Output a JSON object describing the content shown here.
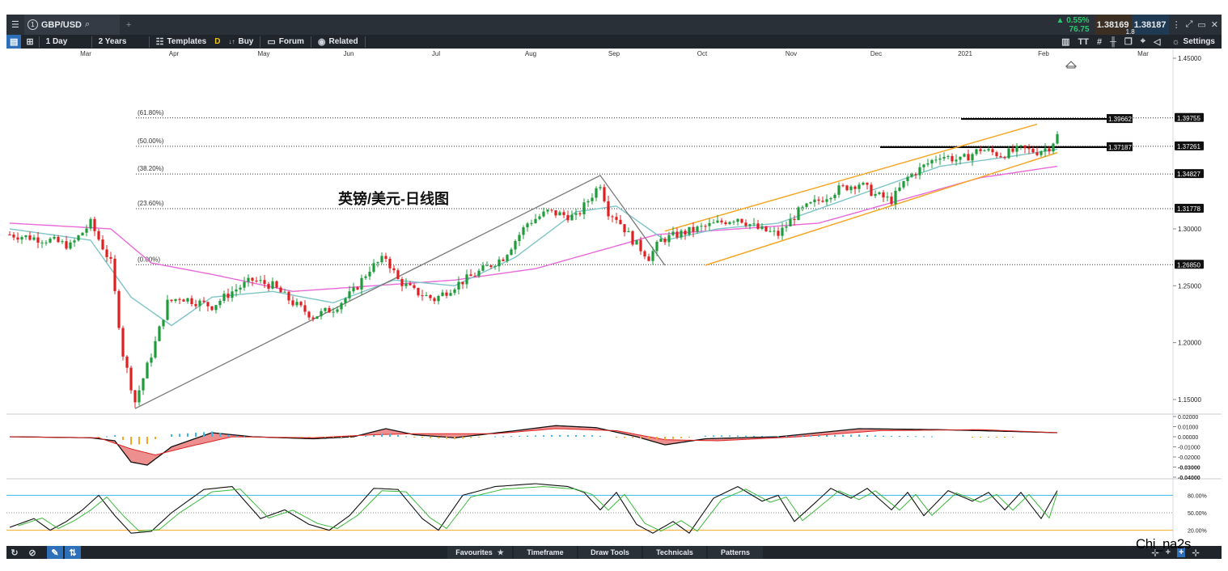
{
  "topbar": {
    "menu_icon": "hamburger-icon",
    "symbol_number": "1",
    "symbol": "GBP/USD",
    "search_icon": "search-icon",
    "add_icon": "plus-icon",
    "change_pct": "0.55%",
    "change_pts": "76.75",
    "bid": "1.38169",
    "spread": "1.8",
    "ask": "1.38187",
    "colors": {
      "up": "#29c76f",
      "bid_bg": "#3a2f22",
      "ask_bg": "#1f3a52"
    }
  },
  "toolbar": {
    "interval": "1 Day",
    "range": "2 Years",
    "templates": "Templates",
    "badge": "D",
    "buy": "Buy",
    "forum": "Forum",
    "related": "Related",
    "settings": "Settings",
    "text_icon": "TT"
  },
  "bottombar": {
    "tabs": [
      "Favourites",
      "Timeframe",
      "Draw Tools",
      "Technicals",
      "Patterns"
    ]
  },
  "watermark": "Chi_na2s",
  "chart_data": {
    "type": "candlestick",
    "title": "英镑/美元-日线图",
    "x_months": [
      "Mar",
      "Apr",
      "May",
      "Jun",
      "Jul",
      "Aug",
      "Sep",
      "Oct",
      "Nov",
      "Dec",
      "2021",
      "Feb",
      "Mar"
    ],
    "y_ticks": [
      "1.45000",
      "1.30000",
      "1.25000",
      "1.20000",
      "1.15000"
    ],
    "ylim": [
      1.14,
      1.45
    ],
    "price_tags": [
      "1.39755",
      "1.37261",
      "1.34827",
      "1.31778",
      "1.26850"
    ],
    "fib_levels": [
      {
        "label": "(61.80%)",
        "value": 1.39755
      },
      {
        "label": "(50.00%)",
        "value": 1.37261
      },
      {
        "label": "(38.20%)",
        "value": 1.34827
      },
      {
        "label": "(23.60%)",
        "value": 1.31778
      },
      {
        "label": "(0.00%)",
        "value": 1.2685
      }
    ],
    "resistance": [
      {
        "label": "1.39662",
        "value": 1.39662
      },
      {
        "label": "1.37187",
        "value": 1.37187
      }
    ],
    "close_anchors": [
      [
        0,
        1.295
      ],
      [
        10,
        1.29
      ],
      [
        15,
        1.285
      ],
      [
        20,
        1.305
      ],
      [
        25,
        1.27
      ],
      [
        28,
        1.19
      ],
      [
        31,
        1.148
      ],
      [
        36,
        1.2
      ],
      [
        39,
        1.235
      ],
      [
        42,
        1.24
      ],
      [
        50,
        1.232
      ],
      [
        55,
        1.245
      ],
      [
        60,
        1.255
      ],
      [
        65,
        1.25
      ],
      [
        70,
        1.235
      ],
      [
        75,
        1.223
      ],
      [
        80,
        1.23
      ],
      [
        85,
        1.245
      ],
      [
        89,
        1.265
      ],
      [
        93,
        1.275
      ],
      [
        96,
        1.255
      ],
      [
        100,
        1.245
      ],
      [
        105,
        1.238
      ],
      [
        110,
        1.25
      ],
      [
        115,
        1.26
      ],
      [
        122,
        1.275
      ],
      [
        128,
        1.305
      ],
      [
        133,
        1.315
      ],
      [
        140,
        1.31
      ],
      [
        143,
        1.325
      ],
      [
        146,
        1.34
      ],
      [
        148,
        1.315
      ],
      [
        150,
        1.31
      ],
      [
        154,
        1.29
      ],
      [
        158,
        1.275
      ],
      [
        161,
        1.29
      ],
      [
        165,
        1.295
      ],
      [
        170,
        1.3
      ],
      [
        175,
        1.305
      ],
      [
        180,
        1.31
      ],
      [
        185,
        1.3
      ],
      [
        190,
        1.295
      ],
      [
        195,
        1.315
      ],
      [
        200,
        1.325
      ],
      [
        205,
        1.335
      ],
      [
        210,
        1.34
      ],
      [
        214,
        1.33
      ],
      [
        218,
        1.325
      ],
      [
        222,
        1.345
      ],
      [
        226,
        1.355
      ],
      [
        230,
        1.365
      ],
      [
        235,
        1.36
      ],
      [
        240,
        1.37
      ],
      [
        245,
        1.365
      ],
      [
        250,
        1.37
      ],
      [
        254,
        1.368
      ],
      [
        257,
        1.372
      ],
      [
        259,
        1.382
      ]
    ],
    "ma_fast_anchors": [
      [
        0,
        1.3
      ],
      [
        20,
        1.29
      ],
      [
        30,
        1.24
      ],
      [
        40,
        1.215
      ],
      [
        50,
        1.24
      ],
      [
        65,
        1.245
      ],
      [
        80,
        1.235
      ],
      [
        95,
        1.255
      ],
      [
        110,
        1.25
      ],
      [
        125,
        1.275
      ],
      [
        140,
        1.315
      ],
      [
        150,
        1.32
      ],
      [
        162,
        1.29
      ],
      [
        175,
        1.3
      ],
      [
        190,
        1.305
      ],
      [
        210,
        1.33
      ],
      [
        230,
        1.355
      ],
      [
        250,
        1.365
      ],
      [
        259,
        1.37
      ]
    ],
    "ma_slow_anchors": [
      [
        0,
        1.305
      ],
      [
        25,
        1.3
      ],
      [
        35,
        1.27
      ],
      [
        50,
        1.26
      ],
      [
        70,
        1.245
      ],
      [
        90,
        1.25
      ],
      [
        110,
        1.255
      ],
      [
        130,
        1.265
      ],
      [
        145,
        1.28
      ],
      [
        160,
        1.295
      ],
      [
        180,
        1.3
      ],
      [
        200,
        1.305
      ],
      [
        220,
        1.325
      ],
      [
        240,
        1.345
      ],
      [
        259,
        1.355
      ]
    ],
    "zigzag": [
      [
        31,
        1.142
      ],
      [
        146,
        1.347
      ],
      [
        162,
        1.268
      ]
    ],
    "channel": {
      "upper": [
        [
          162,
          1.298
        ],
        [
          254,
          1.392
        ]
      ],
      "lower": [
        [
          172,
          1.268
        ],
        [
          259,
          1.367
        ]
      ]
    },
    "macd": {
      "yticks": [
        "0.02000",
        "0.01000",
        "0.00000",
        "-0.01000",
        "-0.02000",
        "-0.03000",
        "-0.04000"
      ],
      "ylim": [
        -0.04,
        0.02
      ]
    },
    "stoch": {
      "yticks": [
        "80.00%",
        "50.00%",
        "20.00%"
      ],
      "levels": [
        80,
        50,
        20
      ],
      "anchors": [
        [
          0,
          25
        ],
        [
          6,
          40
        ],
        [
          10,
          20
        ],
        [
          14,
          35
        ],
        [
          18,
          55
        ],
        [
          22,
          80
        ],
        [
          26,
          45
        ],
        [
          30,
          15
        ],
        [
          35,
          18
        ],
        [
          40,
          50
        ],
        [
          48,
          90
        ],
        [
          55,
          95
        ],
        [
          62,
          40
        ],
        [
          68,
          55
        ],
        [
          74,
          30
        ],
        [
          79,
          20
        ],
        [
          84,
          45
        ],
        [
          90,
          92
        ],
        [
          96,
          90
        ],
        [
          102,
          40
        ],
        [
          106,
          20
        ],
        [
          112,
          80
        ],
        [
          120,
          95
        ],
        [
          130,
          100
        ],
        [
          138,
          95
        ],
        [
          142,
          85
        ],
        [
          146,
          55
        ],
        [
          150,
          85
        ],
        [
          155,
          30
        ],
        [
          159,
          15
        ],
        [
          164,
          35
        ],
        [
          168,
          15
        ],
        [
          174,
          75
        ],
        [
          180,
          95
        ],
        [
          186,
          70
        ],
        [
          190,
          80
        ],
        [
          194,
          35
        ],
        [
          198,
          60
        ],
        [
          203,
          92
        ],
        [
          208,
          75
        ],
        [
          212,
          92
        ],
        [
          218,
          55
        ],
        [
          222,
          85
        ],
        [
          226,
          45
        ],
        [
          232,
          88
        ],
        [
          238,
          70
        ],
        [
          242,
          85
        ],
        [
          246,
          55
        ],
        [
          250,
          85
        ],
        [
          255,
          40
        ],
        [
          259,
          88
        ]
      ]
    }
  }
}
